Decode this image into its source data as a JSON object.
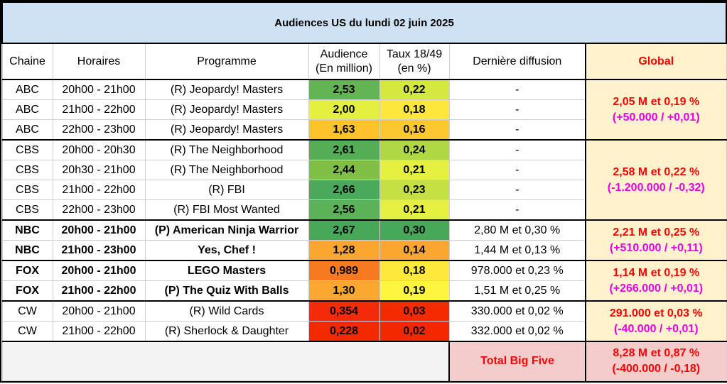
{
  "title": "Audiences US du lundi 02 juin 2025",
  "headers": {
    "chaine": "Chaine",
    "horaires": "Horaires",
    "programme": "Programme",
    "audience": "Audience",
    "audience_unit": "(En million)",
    "taux": "Taux 18/49",
    "taux_unit": "(en %)",
    "derniere": "Dernière diffusion",
    "global": "Global"
  },
  "rows": [
    {
      "chaine": "ABC",
      "horaires": "20h00 - 21h00",
      "programme": "(R) Jeopardy! Masters",
      "audience": "2,53",
      "taux": "0,22",
      "derniere": "-",
      "aud_color": "#63b553",
      "taux_color": "#d4e840",
      "bold": false
    },
    {
      "chaine": "ABC",
      "horaires": "21h00 - 22h00",
      "programme": "(R) Jeopardy! Masters",
      "audience": "2,00",
      "taux": "0,18",
      "derniere": "-",
      "aud_color": "#e5ef3f",
      "taux_color": "#fde73c",
      "bold": false
    },
    {
      "chaine": "ABC",
      "horaires": "22h00 - 23h00",
      "programme": "(R) Jeopardy! Masters",
      "audience": "1,63",
      "taux": "0,16",
      "derniere": "-",
      "aud_color": "#fdc22c",
      "taux_color": "#fdc730",
      "bold": false
    },
    {
      "chaine": "CBS",
      "horaires": "20h00 - 20h30",
      "programme": "(R) The Neighborhood",
      "audience": "2,61",
      "taux": "0,24",
      "derniere": "-",
      "aud_color": "#55ae55",
      "taux_color": "#b0d845",
      "bold": false
    },
    {
      "chaine": "CBS",
      "horaires": "20h30 - 21h00",
      "programme": "(R) The Neighborhood",
      "audience": "2,44",
      "taux": "0,21",
      "derniere": "-",
      "aud_color": "#7fbf45",
      "taux_color": "#e6f040",
      "bold": false
    },
    {
      "chaine": "CBS",
      "horaires": "21h00 - 22h00",
      "programme": "(R) FBI",
      "audience": "2,66",
      "taux": "0,23",
      "derniere": "-",
      "aud_color": "#4aa95a",
      "taux_color": "#c4e042",
      "bold": false
    },
    {
      "chaine": "CBS",
      "horaires": "22h00 - 23h00",
      "programme": "(R) FBI Most Wanted",
      "audience": "2,56",
      "taux": "0,21",
      "derniere": "-",
      "aud_color": "#5cb256",
      "taux_color": "#e6f040",
      "bold": false
    },
    {
      "chaine": "NBC",
      "horaires": "20h00 - 21h00",
      "programme": "(P) American Ninja Warrior",
      "audience": "2,67",
      "taux": "0,30",
      "derniere": "2,80 M et 0,30 %",
      "aud_color": "#48a85a",
      "taux_color": "#48a85a",
      "bold": true
    },
    {
      "chaine": "NBC",
      "horaires": "21h00 - 23h00",
      "programme": "Yes, Chef !",
      "audience": "1,28",
      "taux": "0,14",
      "derniere": "1,44 M et 0,13 %",
      "aud_color": "#fba630",
      "taux_color": "#fba630",
      "bold": true
    },
    {
      "chaine": "FOX",
      "horaires": "20h00 - 21h00",
      "programme": "LEGO Masters",
      "audience": "0,989",
      "taux": "0,18",
      "derniere": "978.000 et 0,23 %",
      "aud_color": "#f87a20",
      "taux_color": "#fde83c",
      "bold": true
    },
    {
      "chaine": "FOX",
      "horaires": "21h00 - 22h00",
      "programme": "(P) The Quiz With Balls",
      "audience": "1,30",
      "taux": "0,19",
      "derniere": "1,51 M et 0,25 %",
      "aud_color": "#fca830",
      "taux_color": "#fdf53f",
      "bold": true
    },
    {
      "chaine": "CW",
      "horaires": "20h00 - 21h00",
      "programme": "(R) Wild Cards",
      "audience": "0,354",
      "taux": "0,03",
      "derniere": "330.000 et 0,02 %",
      "aud_color": "#f52a0a",
      "taux_color": "#f52a00",
      "bold": false
    },
    {
      "chaine": "CW",
      "horaires": "21h00 - 22h00",
      "programme": "(R) Sherlock & Daughter",
      "audience": "0,228",
      "taux": "0,02",
      "derniere": "332.000 et 0,02 %",
      "aud_color": "#f32a00",
      "taux_color": "#f32800",
      "bold": false
    }
  ],
  "globals": [
    {
      "network": "ABC",
      "line1": "2,05 M et 0,19 %",
      "line2": "(+50.000 / +0,01)",
      "rows": 3
    },
    {
      "network": "CBS",
      "line1": "2,58 M et 0,22 %",
      "line2": "(-1.200.000 / -0,32)",
      "rows": 4
    },
    {
      "network": "NBC",
      "line1": "2,21 M et 0,25 %",
      "line2": "(+510.000 / +0,11)",
      "rows": 2
    },
    {
      "network": "FOX",
      "line1": "1,14 M et 0,19 %",
      "line2": "(+266.000 / +0,01)",
      "rows": 2
    },
    {
      "network": "CW",
      "line1": "291.000 et 0,03 %",
      "line2": "(-40.000 / +0,01)",
      "rows": 2
    }
  ],
  "footer": {
    "label": "Total Big Five",
    "line1": "8,28 M et 0,87 %",
    "line2": "(-400.000 / -0,18)"
  }
}
